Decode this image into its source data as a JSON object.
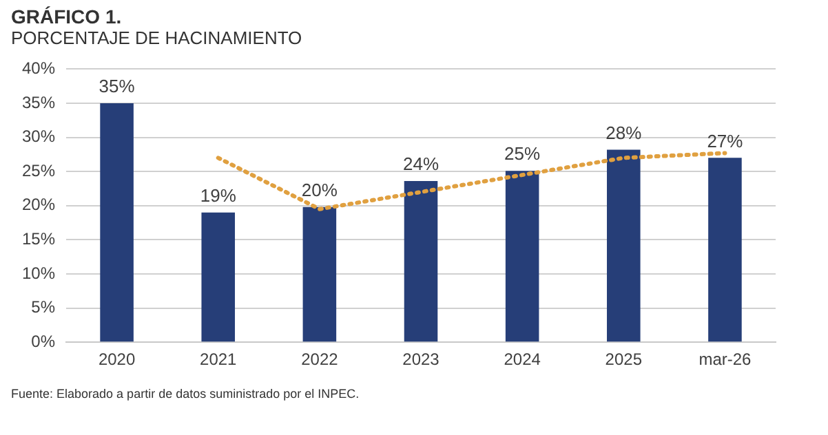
{
  "chart_data": {
    "type": "bar",
    "title": "GRÁFICO 1.",
    "subtitle": "PORCENTAJE DE HACINAMIENTO",
    "categories": [
      "2020",
      "2021",
      "2022",
      "2023",
      "2024",
      "2025",
      "mar-26"
    ],
    "series": [
      {
        "color": "#263e78",
        "values": [
          35,
          19,
          19.8,
          23.6,
          25.1,
          28.2,
          27
        ],
        "value_labels": [
          "35%",
          "19%",
          "20%",
          "24%",
          "25%",
          "28%",
          "27%"
        ]
      },
      {
        "type": "line",
        "color": "#e0a040",
        "values": [
          null,
          27,
          19.5,
          22,
          24.5,
          27,
          27.7
        ],
        "line_style": "dotted",
        "marker": "none"
      }
    ],
    "ylim": [
      0,
      40
    ],
    "yticks": [
      {
        "value": 0,
        "label": "0%"
      },
      {
        "value": 5,
        "label": "5%"
      },
      {
        "value": 10,
        "label": "10%"
      },
      {
        "value": 15,
        "label": "15%"
      },
      {
        "value": 20,
        "label": "20%"
      },
      {
        "value": 25,
        "label": "25%"
      },
      {
        "value": 30,
        "label": "30%"
      },
      {
        "value": 35,
        "label": "35%"
      },
      {
        "value": 40,
        "label": "40%"
      }
    ],
    "grid": "y",
    "legend": false,
    "annotations": [
      "Fuente: Elaborado a partir de datos suministrado por el INPEC."
    ]
  }
}
